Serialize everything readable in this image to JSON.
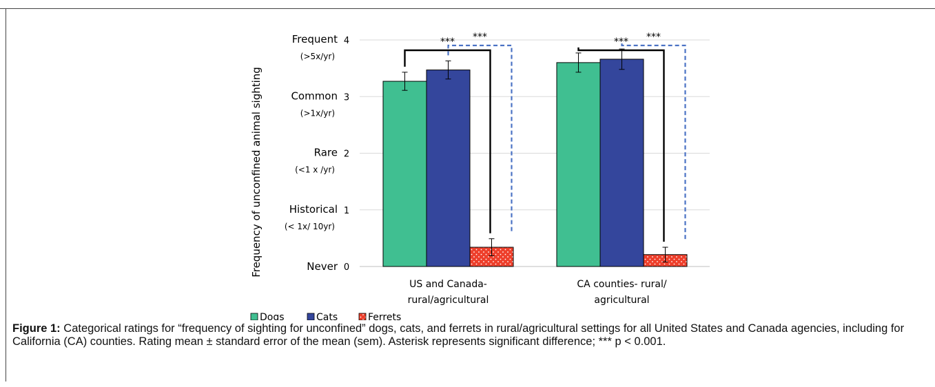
{
  "chart_data": {
    "type": "bar",
    "title": "",
    "ylabel": "Frequency of unconfined animal sighting",
    "ylim": [
      0,
      4
    ],
    "yticks": [
      "0",
      "1",
      "2",
      "3",
      "4"
    ],
    "ylevels": [
      {
        "value": 0,
        "label": "Never",
        "sub": ""
      },
      {
        "value": 1,
        "label": "Historical",
        "sub": "(< 1x/ 10yr)"
      },
      {
        "value": 2,
        "label": "Rare",
        "sub": "(<1 x /yr)"
      },
      {
        "value": 3,
        "label": "Common",
        "sub": "(>1x/yr)"
      },
      {
        "value": 4,
        "label": "Frequent",
        "sub": "(>5x/yr)"
      }
    ],
    "categories": [
      [
        "US and Canada-",
        "rural/agricultural"
      ],
      [
        "CA counties- rural/",
        "agricultural"
      ]
    ],
    "series": [
      {
        "name": "Dogs",
        "color": "#40bf91",
        "values": [
          3.27,
          3.6
        ],
        "errors": [
          0.16,
          0.17
        ]
      },
      {
        "name": "Cats",
        "color": "#34469c",
        "values": [
          3.47,
          3.66
        ],
        "errors": [
          0.16,
          0.18
        ]
      },
      {
        "name": "Ferrets",
        "color": "#ee3f2b",
        "values": [
          0.34,
          0.21
        ],
        "errors": [
          0.15,
          0.13
        ]
      }
    ],
    "significance": [
      {
        "category": 0,
        "from": "Dogs",
        "to": "Ferrets",
        "label": "***",
        "style": "solid"
      },
      {
        "category": 0,
        "from": "Cats",
        "to": "Ferrets",
        "label": "***",
        "style": "dashed"
      },
      {
        "category": 1,
        "from": "Dogs",
        "to": "Ferrets",
        "label": "***",
        "style": "solid"
      },
      {
        "category": 1,
        "from": "Cats",
        "to": "Ferrets",
        "label": "***",
        "style": "dashed"
      }
    ],
    "grid": true,
    "legend": "bottom-left"
  },
  "caption": {
    "label": "Figure 1:",
    "text": " Categorical ratings for “frequency of sighting for unconfined” dogs, cats, and ferrets in rural/agricultural settings for all United States and Canada agencies, including for California (CA) counties. Rating mean ± standard error of the mean (sem). Asterisk represents significant difference; *** p < 0.001."
  }
}
